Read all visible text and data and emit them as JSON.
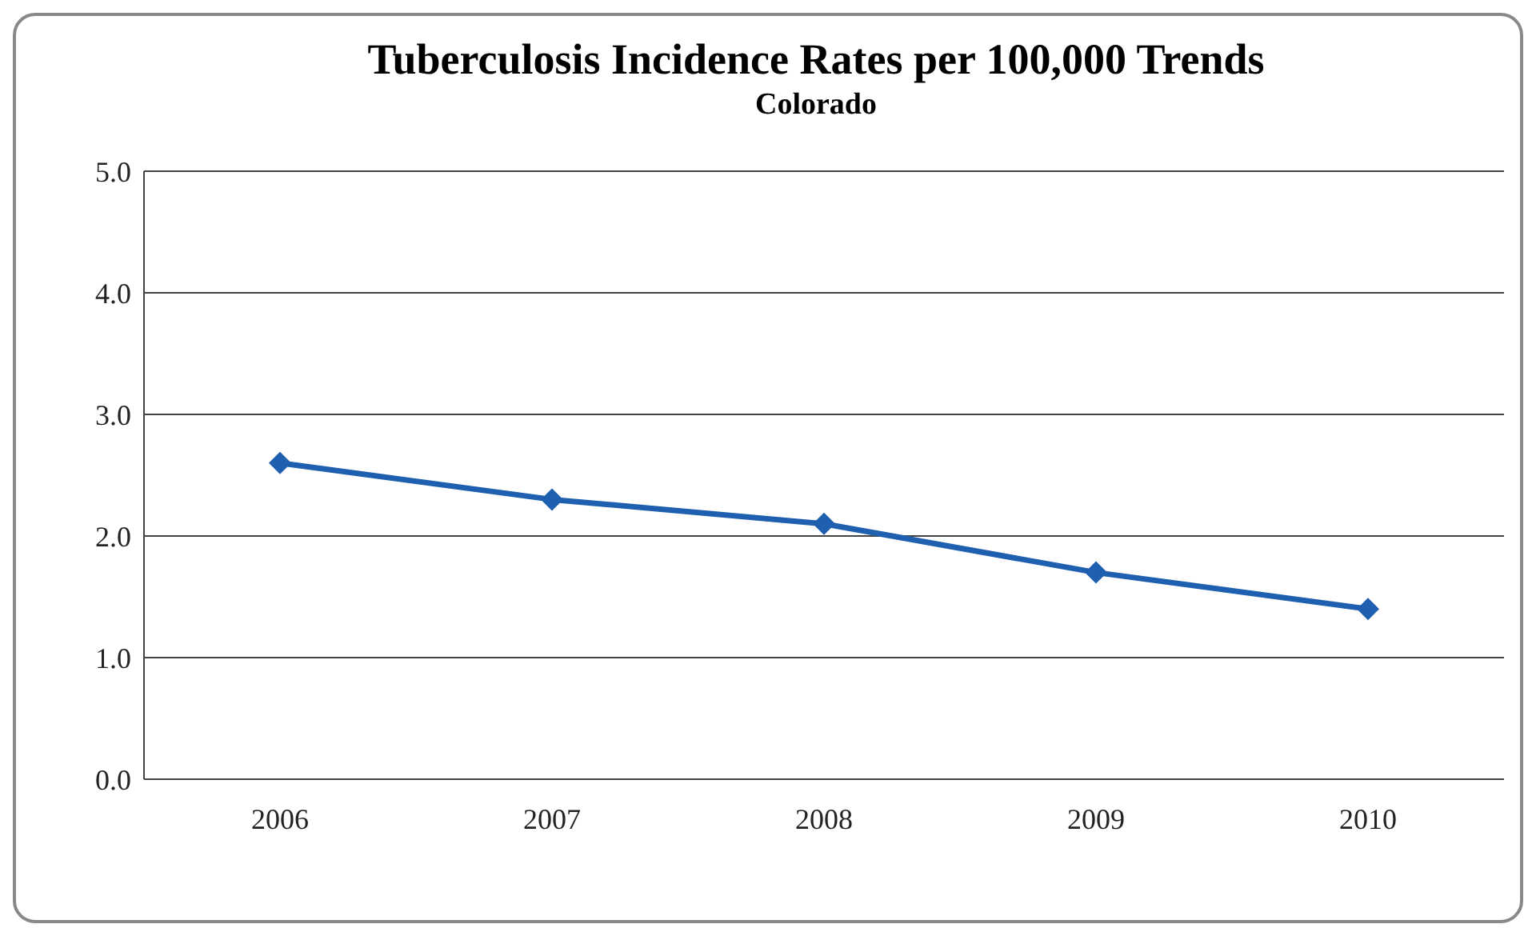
{
  "chart_data": {
    "type": "line",
    "title": "Tuberculosis Incidence Rates per 100,000 Trends",
    "subtitle": "Colorado",
    "categories": [
      "2006",
      "2007",
      "2008",
      "2009",
      "2010"
    ],
    "series": [
      {
        "color": "#1f5fb0",
        "values": [
          2.6,
          2.3,
          2.1,
          1.7,
          1.4
        ]
      }
    ],
    "ylim": [
      0,
      5
    ],
    "yticks": [
      {
        "value": 0,
        "label": "0.0"
      },
      {
        "value": 1,
        "label": "1.0"
      },
      {
        "value": 2,
        "label": "2.0"
      },
      {
        "value": 3,
        "label": "3.0"
      },
      {
        "value": 4,
        "label": "4.0"
      },
      {
        "value": 5,
        "label": "5.0"
      }
    ],
    "grid": "y",
    "marker": "diamond",
    "line_style": "solid"
  }
}
